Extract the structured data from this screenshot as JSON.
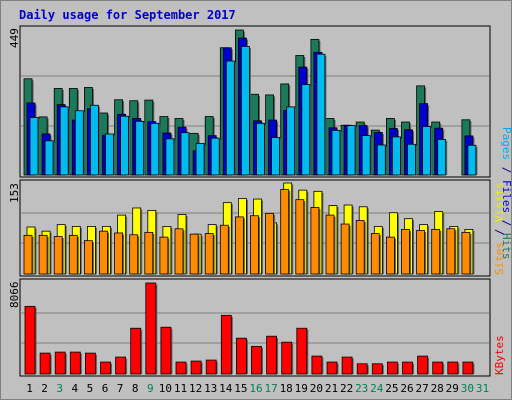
{
  "chart_data": [
    {
      "type": "bar",
      "title": "Daily usage for September 2017",
      "panel": "hits-files-pages",
      "categories": [
        "1",
        "2",
        "3",
        "4",
        "5",
        "6",
        "7",
        "8",
        "9",
        "10",
        "11",
        "12",
        "13",
        "14",
        "15",
        "16",
        "17",
        "18",
        "19",
        "20",
        "21",
        "22",
        "23",
        "24",
        "25",
        "26",
        "27",
        "28",
        "29",
        "30",
        "31"
      ],
      "ylim": [
        0,
        449
      ],
      "max_label": "449",
      "grid": true,
      "legend": {
        "pages": "Pages",
        "files": "Files",
        "hits": "Hits",
        "sep": " / "
      },
      "series": [
        {
          "name": "Hits",
          "color": "#1b7a5a",
          "values": [
            298,
            180,
            268,
            268,
            271,
            192,
            233,
            230,
            232,
            181,
            175,
            129,
            181,
            394,
            449,
            250,
            248,
            282,
            370,
            420,
            175,
            154,
            164,
            139,
            175,
            164,
            276,
            164,
            0,
            171,
            0
          ]
        },
        {
          "name": "Files",
          "color": "#0000cc",
          "values": [
            223,
            127,
            218,
            170,
            205,
            123,
            188,
            175,
            165,
            130,
            148,
            75,
            122,
            394,
            424,
            168,
            170,
            200,
            334,
            380,
            146,
            154,
            153,
            132,
            144,
            140,
            221,
            145,
            0,
            121,
            0
          ]
        },
        {
          "name": "Pages",
          "color": "#00bbee",
          "values": [
            178,
            106,
            211,
            199,
            216,
            127,
            182,
            166,
            160,
            112,
            131,
            98,
            114,
            353,
            398,
            160,
            116,
            211,
            280,
            374,
            138,
            153,
            122,
            93,
            118,
            95,
            150,
            110,
            0,
            92,
            0
          ]
        }
      ]
    },
    {
      "type": "bar",
      "panel": "visits-sites",
      "categories": [
        "1",
        "2",
        "3",
        "4",
        "5",
        "6",
        "7",
        "8",
        "9",
        "10",
        "11",
        "12",
        "13",
        "14",
        "15",
        "16",
        "17",
        "18",
        "19",
        "20",
        "21",
        "22",
        "23",
        "24",
        "25",
        "26",
        "27",
        "28",
        "29",
        "30",
        "31"
      ],
      "ylim": [
        0,
        153
      ],
      "max_label": "153",
      "grid": true,
      "legend": {
        "sites": "Sites",
        "visits": "Visits",
        "sep": " / "
      },
      "series": [
        {
          "name": "Visits",
          "color": "#ffff00",
          "values": [
            79,
            72,
            83,
            80,
            80,
            80,
            99,
            111,
            107,
            80,
            100,
            67,
            83,
            120,
            127,
            126,
            86,
            153,
            141,
            139,
            115,
            116,
            113,
            80,
            103,
            93,
            83,
            105,
            80,
            75,
            0
          ]
        },
        {
          "name": "Sites",
          "color": "#ff8c00",
          "values": [
            65,
            65,
            63,
            65,
            56,
            72,
            69,
            66,
            70,
            62,
            76,
            67,
            68,
            82,
            96,
            98,
            102,
            142,
            125,
            112,
            99,
            84,
            90,
            68,
            62,
            75,
            73,
            75,
            76,
            70,
            0
          ]
        }
      ]
    },
    {
      "type": "bar",
      "panel": "kbytes",
      "categories": [
        "1",
        "2",
        "3",
        "4",
        "5",
        "6",
        "7",
        "8",
        "9",
        "10",
        "11",
        "12",
        "13",
        "14",
        "15",
        "16",
        "17",
        "18",
        "19",
        "20",
        "21",
        "22",
        "23",
        "24",
        "25",
        "26",
        "27",
        "28",
        "29",
        "30",
        "31"
      ],
      "ylim": [
        0,
        8066
      ],
      "max_label": "8066",
      "grid": true,
      "legend": {
        "kbytes": "KBytes"
      },
      "series": [
        {
          "name": "KBytes",
          "color": "#ff0000",
          "values": [
            5994,
            1852,
            1942,
            1942,
            1852,
            1058,
            1500,
            4057,
            8066,
            4147,
            1058,
            1146,
            1234,
            5200,
            3174,
            2450,
            3350,
            2822,
            4057,
            1588,
            1058,
            1500,
            906,
            906,
            1058,
            1058,
            1588,
            1058,
            1058,
            1058,
            0
          ]
        }
      ]
    }
  ],
  "x_label_colors": [
    "#000000",
    "#000000",
    "#00805a",
    "#000000",
    "#000000",
    "#000000",
    "#000000",
    "#000000",
    "#00805a",
    "#000000",
    "#000000",
    "#000000",
    "#000000",
    "#000000",
    "#000000",
    "#00805a",
    "#00805a",
    "#000000",
    "#000000",
    "#000000",
    "#000000",
    "#000000",
    "#00805a",
    "#00805a",
    "#000000",
    "#000000",
    "#000000",
    "#000000",
    "#000000",
    "#00805a",
    "#00805a"
  ],
  "colors": {
    "background": "#c0c0c0",
    "plot": "#c0c0c0",
    "title": "#0000cc",
    "grid": "#808080",
    "legend_hits_files": "#000080",
    "pages_label": "#00aaff",
    "hits_label": "#1b7a5a",
    "files_label": "#0000cc",
    "sites_label": "#ff8c00",
    "visits_label": "#eeee00",
    "kbytes_label": "#ff0000"
  }
}
